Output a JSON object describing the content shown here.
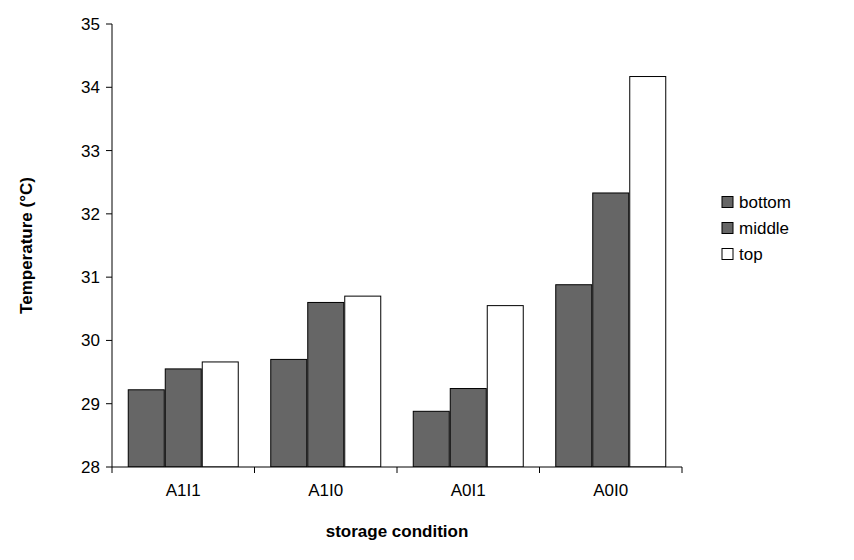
{
  "chart_data": {
    "type": "bar",
    "x_label": "storage condition",
    "y_label": "Temperature (°C)",
    "categories": [
      "A1I1",
      "A1I0",
      "A0I1",
      "A0I0"
    ],
    "series": [
      {
        "name": "bottom",
        "color": "#666666",
        "values": [
          29.22,
          29.7,
          28.88,
          30.88
        ]
      },
      {
        "name": "middle",
        "color": "#666666",
        "values": [
          29.55,
          30.6,
          29.24,
          32.33
        ]
      },
      {
        "name": "top",
        "color": "#ffffff",
        "values": [
          29.66,
          30.7,
          30.55,
          34.17
        ]
      }
    ],
    "ylim": [
      28,
      35
    ],
    "yticks": [
      28,
      29,
      30,
      31,
      32,
      33,
      34,
      35
    ],
    "grid": false,
    "legend": "right"
  }
}
